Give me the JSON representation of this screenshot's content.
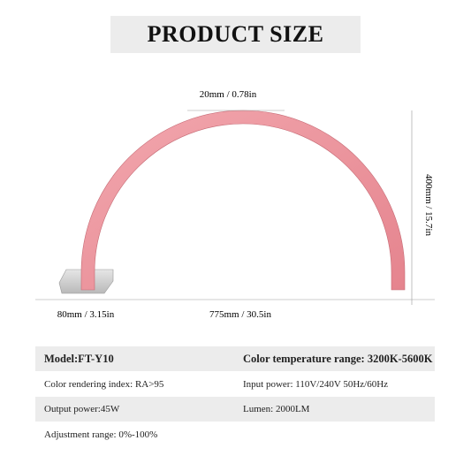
{
  "header": {
    "title": "PRODUCT SIZE"
  },
  "dimensions": {
    "arc_width": "20mm / 0.78in",
    "height": "400mm / 15.7in",
    "base": "80mm / 3.15in",
    "span": "775mm / 30.5in"
  },
  "specs": {
    "rows": [
      [
        "Model:FT-Y10",
        "Color temperature range: 3200K-5600K"
      ],
      [
        "Color rendering index: RA>95",
        "Input power: 110V/240V 50Hz/60Hz"
      ],
      [
        "Output power:45W",
        "Lumen: 2000LM"
      ],
      [
        "Adjustment range: 0%-100%"
      ]
    ]
  }
}
